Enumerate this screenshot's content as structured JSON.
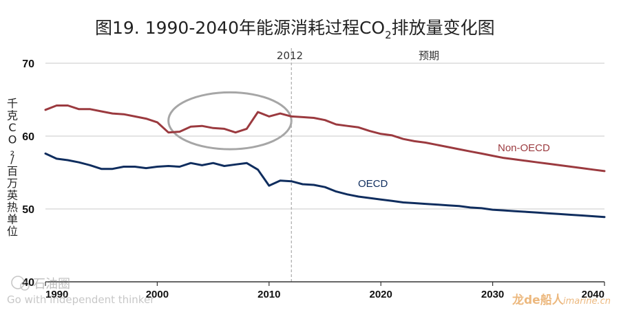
{
  "colors": {
    "non_oecd": "#9b3a3f",
    "oecd": "#0f2d5e",
    "gridline": "#c8c8c8",
    "axis": "#333333",
    "highlight_ellipse": "#a6a6a6",
    "divider": "#b0b0b0"
  },
  "chart_data": {
    "type": "line",
    "title": "图19. 1990-2040年能源消耗过程CO",
    "title_subscript": "2",
    "title_suffix": "排放量变化图",
    "ylabel": "千克CO₂/百万英热单位",
    "ylim": [
      40,
      70
    ],
    "yticks": [
      40,
      50,
      60,
      70
    ],
    "xlim": [
      1990,
      2040
    ],
    "xticks": [
      1990,
      2000,
      2010,
      2020,
      2030,
      2040
    ],
    "grid": "horizontal",
    "projection_start_year": 2012,
    "projection_year_label": "2012",
    "projection_label": "预期",
    "highlight": {
      "shape": "ellipse",
      "x_range": [
        2001,
        2012
      ],
      "y_range": [
        58.2,
        66.0
      ]
    },
    "series": [
      {
        "name": "Non-OECD",
        "color_key": "non_oecd",
        "x": [
          1990,
          1991,
          1992,
          1993,
          1994,
          1995,
          1996,
          1997,
          1998,
          1999,
          2000,
          2001,
          2002,
          2003,
          2004,
          2005,
          2006,
          2007,
          2008,
          2009,
          2010,
          2011,
          2012,
          2013,
          2014,
          2015,
          2016,
          2017,
          2018,
          2019,
          2020,
          2021,
          2022,
          2023,
          2024,
          2025,
          2026,
          2027,
          2028,
          2029,
          2030,
          2031,
          2032,
          2033,
          2034,
          2035,
          2036,
          2037,
          2038,
          2039,
          2040
        ],
        "values": [
          63.6,
          64.2,
          64.2,
          63.7,
          63.7,
          63.4,
          63.1,
          63.0,
          62.7,
          62.4,
          61.9,
          60.5,
          60.6,
          61.3,
          61.4,
          61.1,
          61.0,
          60.5,
          61.0,
          63.3,
          62.7,
          63.1,
          62.7,
          62.6,
          62.5,
          62.2,
          61.6,
          61.4,
          61.2,
          60.7,
          60.3,
          60.1,
          59.6,
          59.3,
          59.1,
          58.8,
          58.5,
          58.2,
          57.9,
          57.6,
          57.3,
          57.0,
          56.8,
          56.6,
          56.4,
          56.2,
          56.0,
          55.8,
          55.6,
          55.4,
          55.2
        ]
      },
      {
        "name": "OECD",
        "color_key": "oecd",
        "x": [
          1990,
          1991,
          1992,
          1993,
          1994,
          1995,
          1996,
          1997,
          1998,
          1999,
          2000,
          2001,
          2002,
          2003,
          2004,
          2005,
          2006,
          2007,
          2008,
          2009,
          2010,
          2011,
          2012,
          2013,
          2014,
          2015,
          2016,
          2017,
          2018,
          2019,
          2020,
          2021,
          2022,
          2023,
          2024,
          2025,
          2026,
          2027,
          2028,
          2029,
          2030,
          2031,
          2032,
          2033,
          2034,
          2035,
          2036,
          2037,
          2038,
          2039,
          2040
        ],
        "values": [
          57.6,
          56.9,
          56.7,
          56.4,
          56.0,
          55.5,
          55.5,
          55.8,
          55.8,
          55.6,
          55.8,
          55.9,
          55.8,
          56.3,
          56.0,
          56.3,
          55.9,
          56.1,
          56.3,
          55.4,
          53.2,
          53.9,
          53.8,
          53.4,
          53.3,
          53.0,
          52.4,
          52.0,
          51.7,
          51.5,
          51.3,
          51.1,
          50.9,
          50.8,
          50.7,
          50.6,
          50.5,
          50.4,
          50.2,
          50.1,
          49.9,
          49.8,
          49.7,
          49.6,
          49.5,
          49.4,
          49.3,
          49.2,
          49.1,
          49.0,
          48.9
        ]
      }
    ]
  },
  "watermarks": {
    "logo_text": "石油圈",
    "tagline": "Go with independent thinker",
    "site_brand": "龙de船人",
    "site_url": "imarine.cn"
  }
}
